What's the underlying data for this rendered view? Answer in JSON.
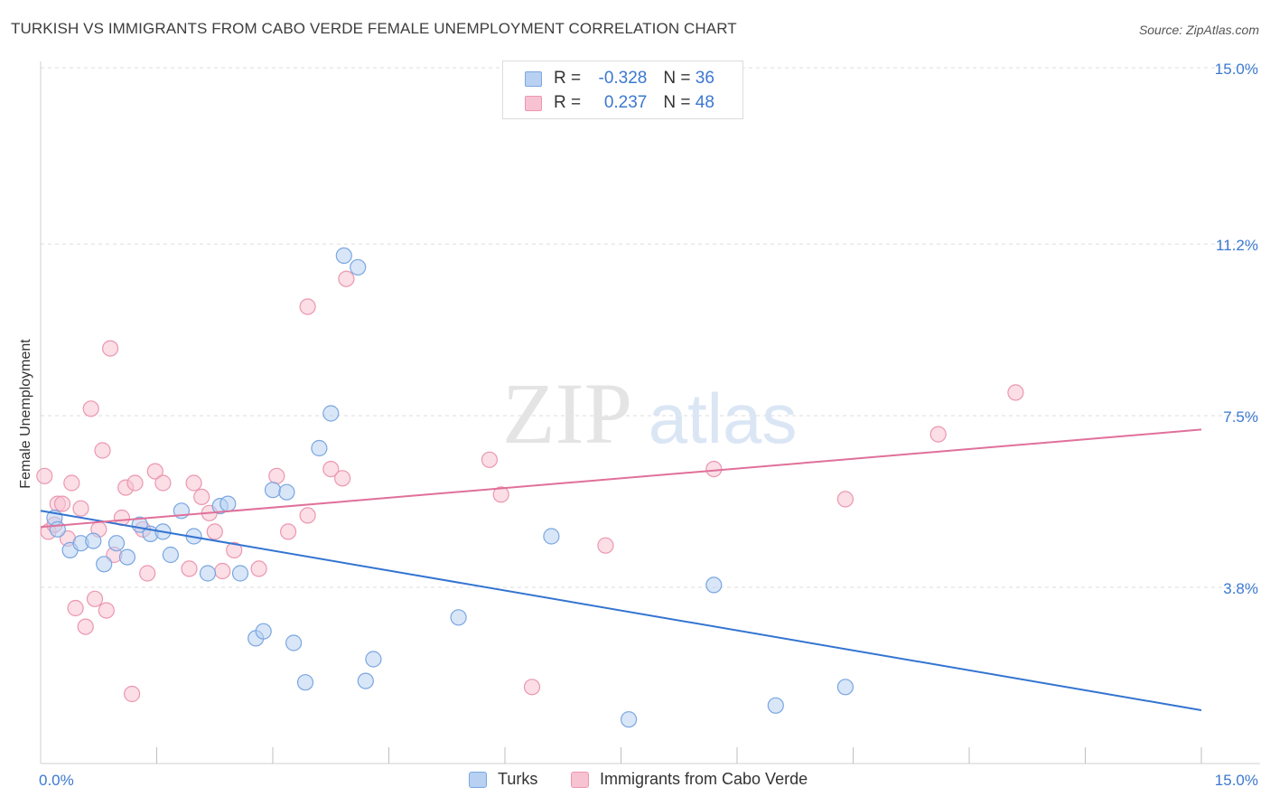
{
  "header": {
    "title": "TURKISH VS IMMIGRANTS FROM CABO VERDE FEMALE UNEMPLOYMENT CORRELATION CHART",
    "source": "Source: ZipAtlas.com"
  },
  "watermark": {
    "zip": "ZIP",
    "atlas": "atlas"
  },
  "legend": {
    "rows": [
      {
        "r_label": "R = ",
        "r_value": "-0.328",
        "n_label": "N = ",
        "n_value": "36"
      },
      {
        "r_label": "R = ",
        "r_value": "0.237",
        "n_label": "N = ",
        "n_value": "48"
      }
    ]
  },
  "bottom_legend": {
    "turks": "Turks",
    "cabo_verde": "Immigrants from Cabo Verde"
  },
  "colors": {
    "turks_fill": "#b8d1f2",
    "turks_stroke": "#7aa6e0",
    "turks_line": "#3374d1",
    "cabo_fill": "#f7c2d1",
    "cabo_stroke": "#eb97b0",
    "cabo_line": "#e0709a",
    "tick_label": "#3b78d0",
    "grid": "#dddddd"
  },
  "chart_data": {
    "type": "scatter",
    "title": "TURKISH VS IMMIGRANTS FROM CABO VERDE FEMALE UNEMPLOYMENT CORRELATION CHART",
    "xlabel": "",
    "ylabel": "Female Unemployment",
    "xlim": [
      0,
      15
    ],
    "ylim": [
      0,
      15.5
    ],
    "x_tick_labels": [
      {
        "value": 0,
        "label": "0.0%"
      },
      {
        "value": 15,
        "label": "15.0%"
      }
    ],
    "y_ticks": [
      {
        "value": 3.8,
        "label": "3.8%"
      },
      {
        "value": 7.5,
        "label": "7.5%"
      },
      {
        "value": 11.2,
        "label": "11.2%"
      },
      {
        "value": 15.0,
        "label": "15.0%"
      }
    ],
    "x_minor_ticks": [
      1.5,
      3.0,
      4.5,
      6.0,
      7.5,
      9.0,
      10.5,
      12.0,
      13.5,
      15.0
    ],
    "grid": true,
    "legend_position": "top-center",
    "series": [
      {
        "name": "Turks",
        "r": -0.328,
        "n": 36,
        "trend": [
          [
            0,
            5.45
          ],
          [
            15,
            1.15
          ]
        ],
        "points": [
          [
            0.18,
            5.3
          ],
          [
            0.22,
            5.05
          ],
          [
            0.38,
            4.6
          ],
          [
            0.52,
            4.75
          ],
          [
            0.68,
            4.8
          ],
          [
            0.82,
            4.3
          ],
          [
            0.98,
            4.75
          ],
          [
            1.12,
            4.45
          ],
          [
            1.28,
            5.15
          ],
          [
            1.42,
            4.95
          ],
          [
            1.58,
            5.0
          ],
          [
            1.68,
            4.5
          ],
          [
            1.82,
            5.45
          ],
          [
            1.98,
            4.9
          ],
          [
            2.16,
            4.1
          ],
          [
            2.32,
            5.55
          ],
          [
            2.42,
            5.6
          ],
          [
            2.58,
            4.1
          ],
          [
            2.78,
            2.7
          ],
          [
            2.88,
            2.85
          ],
          [
            3.0,
            5.9
          ],
          [
            3.18,
            5.85
          ],
          [
            3.27,
            2.6
          ],
          [
            3.42,
            1.75
          ],
          [
            3.6,
            6.8
          ],
          [
            3.75,
            7.55
          ],
          [
            3.92,
            10.95
          ],
          [
            4.1,
            10.7
          ],
          [
            4.2,
            1.78
          ],
          [
            4.3,
            2.25
          ],
          [
            5.4,
            3.15
          ],
          [
            6.6,
            4.9
          ],
          [
            7.6,
            0.95
          ],
          [
            8.7,
            3.85
          ],
          [
            9.5,
            1.25
          ],
          [
            10.4,
            1.65
          ]
        ]
      },
      {
        "name": "Immigrants from Cabo Verde",
        "r": 0.237,
        "n": 48,
        "trend": [
          [
            0,
            5.1
          ],
          [
            15,
            7.2
          ]
        ],
        "points": [
          [
            0.05,
            6.2
          ],
          [
            0.1,
            5.0
          ],
          [
            0.18,
            5.15
          ],
          [
            0.22,
            5.6
          ],
          [
            0.28,
            5.6
          ],
          [
            0.35,
            4.85
          ],
          [
            0.4,
            6.05
          ],
          [
            0.45,
            3.35
          ],
          [
            0.52,
            5.5
          ],
          [
            0.58,
            2.95
          ],
          [
            0.65,
            7.65
          ],
          [
            0.7,
            3.55
          ],
          [
            0.75,
            5.05
          ],
          [
            0.8,
            6.75
          ],
          [
            0.85,
            3.3
          ],
          [
            0.9,
            8.95
          ],
          [
            0.95,
            4.5
          ],
          [
            1.05,
            5.3
          ],
          [
            1.1,
            5.95
          ],
          [
            1.18,
            1.5
          ],
          [
            1.22,
            6.05
          ],
          [
            1.32,
            5.05
          ],
          [
            1.38,
            4.1
          ],
          [
            1.48,
            6.3
          ],
          [
            1.58,
            6.05
          ],
          [
            1.92,
            4.2
          ],
          [
            1.98,
            6.05
          ],
          [
            2.08,
            5.75
          ],
          [
            2.18,
            5.4
          ],
          [
            2.25,
            5.0
          ],
          [
            2.35,
            4.15
          ],
          [
            2.5,
            4.6
          ],
          [
            2.82,
            4.2
          ],
          [
            3.05,
            6.2
          ],
          [
            3.2,
            5.0
          ],
          [
            3.45,
            5.35
          ],
          [
            3.45,
            9.85
          ],
          [
            3.75,
            6.35
          ],
          [
            3.9,
            6.15
          ],
          [
            3.95,
            10.45
          ],
          [
            5.8,
            6.55
          ],
          [
            5.95,
            5.8
          ],
          [
            6.35,
            1.65
          ],
          [
            7.3,
            4.7
          ],
          [
            8.7,
            6.35
          ],
          [
            10.4,
            5.7
          ],
          [
            11.6,
            7.1
          ],
          [
            12.6,
            8.0
          ]
        ]
      }
    ]
  }
}
